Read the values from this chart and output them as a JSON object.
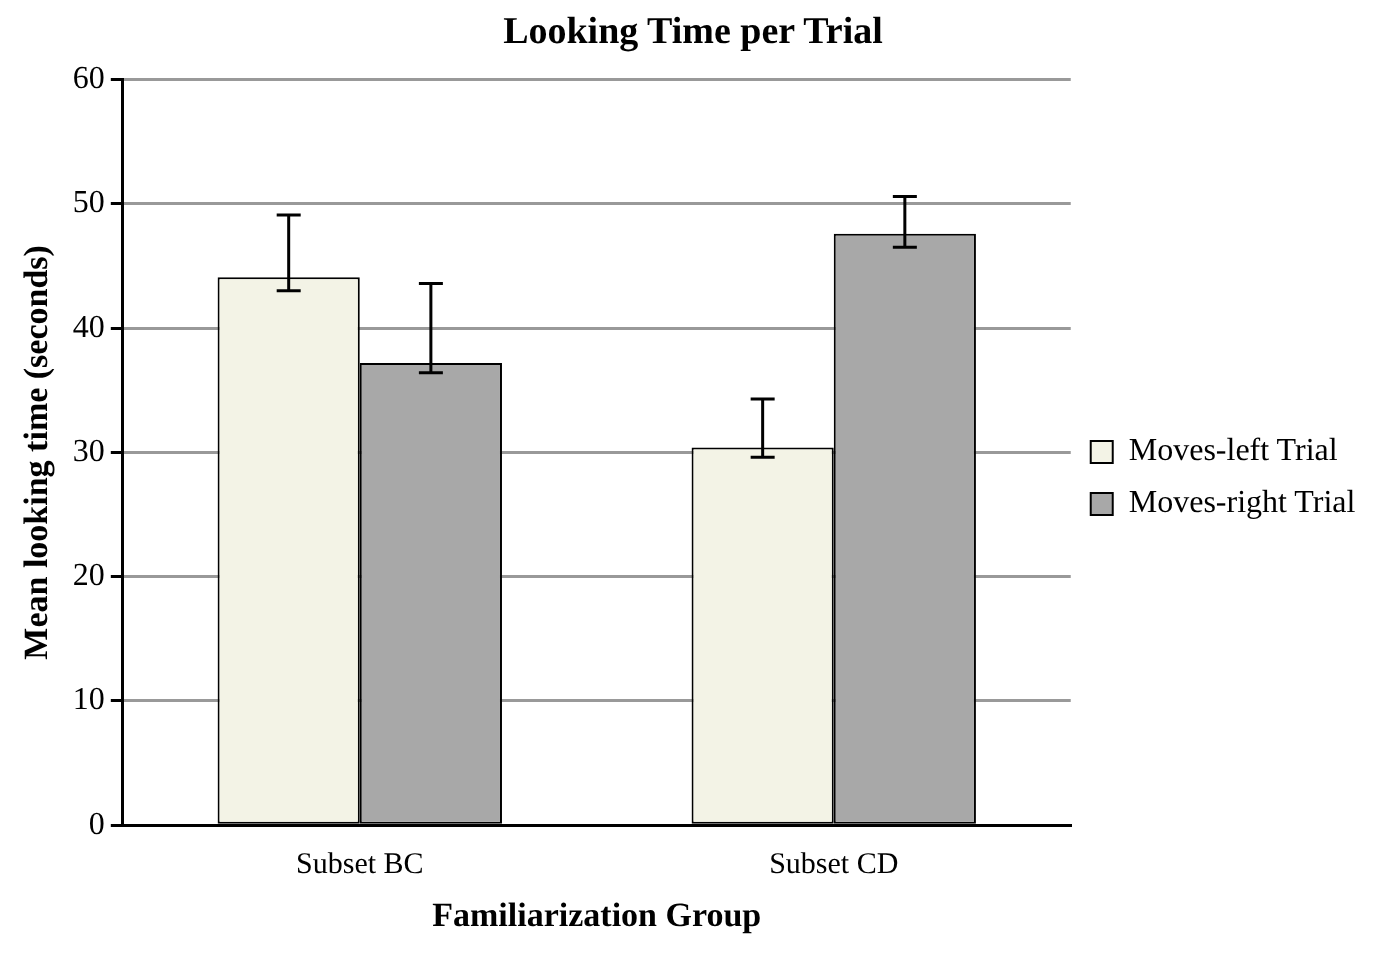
{
  "chart_data": {
    "type": "bar",
    "title": "Looking Time per Trial",
    "xlabel": "Familiarization Group",
    "ylabel": "Mean looking time (seconds)",
    "categories": [
      "Subset BC",
      "Subset CD"
    ],
    "series": [
      {
        "name": "Moves-left Trial",
        "color": "#f3f3e6",
        "values": [
          44.1,
          30.4
        ],
        "errors": [
          [
            43.0,
            49.1
          ],
          [
            29.6,
            34.3
          ]
        ]
      },
      {
        "name": "Moves-right Trial",
        "color": "#a8a8a8",
        "values": [
          37.2,
          47.6
        ],
        "errors": [
          [
            36.4,
            43.6
          ],
          [
            46.5,
            50.6
          ]
        ]
      }
    ],
    "ylim": [
      0,
      60
    ],
    "yticks": [
      0,
      10,
      20,
      30,
      40,
      50,
      60
    ],
    "grid": "y",
    "legend": "right"
  }
}
